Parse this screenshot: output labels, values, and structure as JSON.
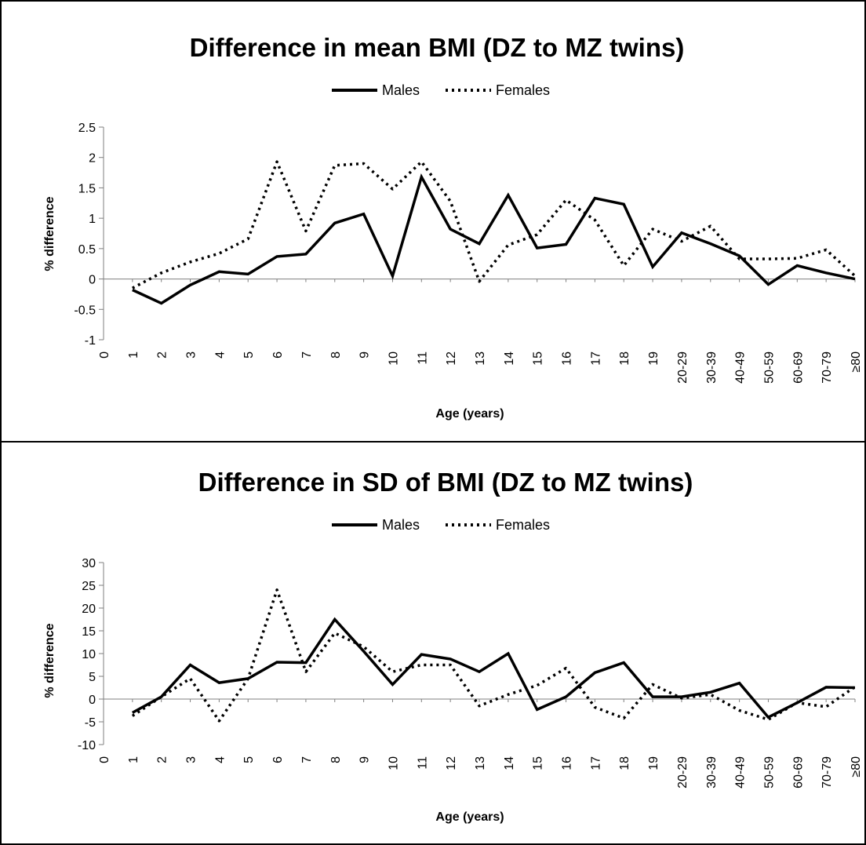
{
  "chart_data": [
    {
      "type": "line",
      "title": "Difference in mean BMI (DZ to MZ twins)",
      "xlabel": "Age (years)",
      "ylabel": "% difference",
      "ylim": [
        -1,
        2.5
      ],
      "yticks": [
        "2.5",
        "2",
        "1.5",
        "1",
        "0.5",
        "0",
        "-0.5",
        "-1"
      ],
      "categories": [
        "0",
        "1",
        "2",
        "3",
        "4",
        "5",
        "6",
        "7",
        "8",
        "9",
        "10",
        "11",
        "12",
        "13",
        "14",
        "15",
        "16",
        "17",
        "18",
        "19",
        "20-29",
        "30-39",
        "40-49",
        "50-59",
        "60-69",
        "70-79",
        "≥80"
      ],
      "legend_position": "top-center",
      "grid": false,
      "series": [
        {
          "name": "Males",
          "style": "solid",
          "values": [
            null,
            -0.18,
            -0.4,
            -0.1,
            0.12,
            0.08,
            0.37,
            0.41,
            0.92,
            1.07,
            0.05,
            1.68,
            0.82,
            0.58,
            1.38,
            0.51,
            0.57,
            1.33,
            1.23,
            0.2,
            0.76,
            0.58,
            0.38,
            -0.09,
            0.22,
            0.1,
            0.0
          ]
        },
        {
          "name": "Females",
          "style": "dotted",
          "values": [
            null,
            -0.15,
            0.1,
            0.28,
            0.42,
            0.66,
            1.93,
            0.79,
            1.87,
            1.9,
            1.48,
            1.93,
            1.28,
            -0.04,
            0.56,
            0.73,
            1.3,
            0.97,
            0.22,
            0.82,
            0.62,
            0.87,
            0.33,
            0.33,
            0.34,
            0.48,
            0.05
          ]
        }
      ]
    },
    {
      "type": "line",
      "title": "Difference in SD of BMI (DZ to MZ twins)",
      "xlabel": "Age (years)",
      "ylabel": "% difference",
      "ylim": [
        -10,
        30
      ],
      "yticks": [
        "30",
        "25",
        "20",
        "15",
        "10",
        "5",
        "0",
        "-5",
        "-10"
      ],
      "categories": [
        "0",
        "1",
        "2",
        "3",
        "4",
        "5",
        "6",
        "7",
        "8",
        "9",
        "10",
        "11",
        "12",
        "13",
        "14",
        "15",
        "16",
        "17",
        "18",
        "19",
        "20-29",
        "30-39",
        "40-49",
        "50-59",
        "60-69",
        "70-79",
        "≥80"
      ],
      "legend_position": "top-center",
      "grid": false,
      "series": [
        {
          "name": "Males",
          "style": "solid",
          "values": [
            null,
            -3,
            0.5,
            7.5,
            3.6,
            4.5,
            8.1,
            8,
            17.5,
            10.5,
            3.2,
            9.8,
            8.8,
            6,
            10,
            -2.3,
            0.5,
            5.8,
            8,
            0.5,
            0.5,
            1.5,
            3.5,
            -4,
            -0.8,
            2.6,
            2.5
          ]
        },
        {
          "name": "Females",
          "style": "dotted",
          "values": [
            null,
            -3.7,
            0.5,
            4.5,
            -4.8,
            4.5,
            24,
            6,
            14.5,
            11.5,
            6,
            7.5,
            7.5,
            -1.5,
            1,
            3,
            6.8,
            -1.8,
            -4.2,
            3.2,
            0.2,
            1,
            -2.5,
            -4.5,
            -0.8,
            -1.7,
            2.7
          ]
        }
      ]
    }
  ]
}
